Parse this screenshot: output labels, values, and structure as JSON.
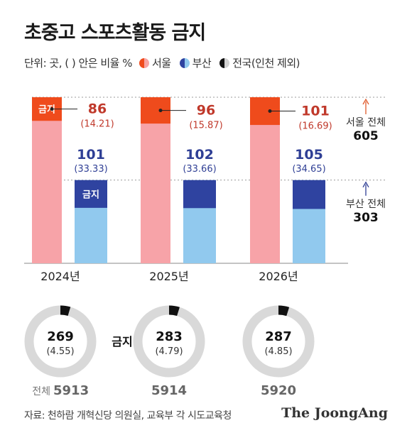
{
  "title": "초중고 스포츠활동 금지",
  "legend": {
    "unit": "단위: 곳, ( ) 안은 비율 %",
    "seoul": "서울",
    "busan": "부산",
    "nation": "전국(인천 제외)"
  },
  "colors": {
    "seoul_total": "#f7a3a8",
    "seoul_ban": "#ef4b1c",
    "seoul_text": "#c0392b",
    "busan_total": "#91c9ee",
    "busan_ban": "#2f43a0",
    "busan_text": "#2f3f95",
    "donut_total": "#d9d9d9",
    "donut_ban": "#111111"
  },
  "chart_data": {
    "type": "bar",
    "categories": [
      "2024년",
      "2025년",
      "2026년"
    ],
    "ban_label": "금지",
    "seoul": {
      "total_label": "서울 전체",
      "total": 605,
      "ban": [
        86,
        96,
        101
      ],
      "pct": [
        "(14.21)",
        "(15.87)",
        "(16.69)"
      ]
    },
    "busan": {
      "total_label": "부산 전체",
      "total": 303,
      "ban": [
        101,
        102,
        105
      ],
      "pct": [
        "(33.33)",
        "(33.66)",
        "(34.65)"
      ]
    },
    "nation": {
      "total_prefix": "전체",
      "ban": [
        269,
        283,
        287
      ],
      "pct": [
        "(4.55)",
        "(4.79)",
        "(4.85)"
      ],
      "total": [
        5913,
        5914,
        5920
      ]
    }
  },
  "source": "자료: 천하람 개혁신당 의원실, 교육부 각 시도교육청",
  "brand": "The JoongAng"
}
